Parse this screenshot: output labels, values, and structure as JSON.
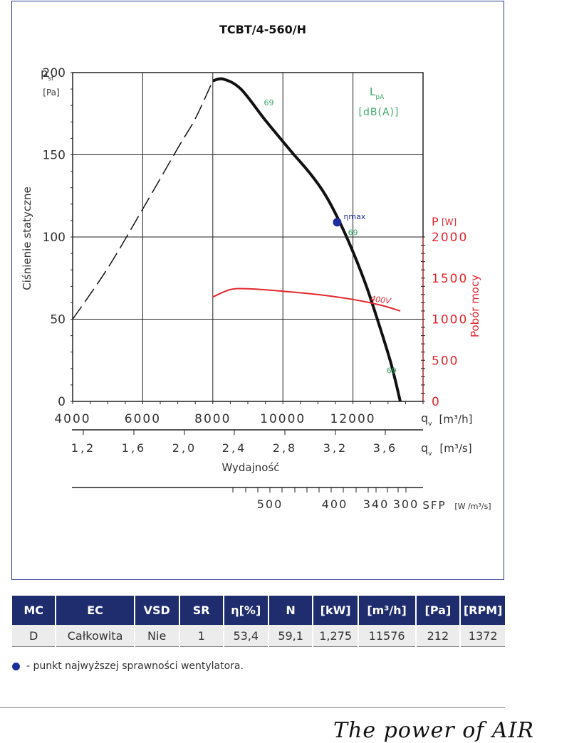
{
  "chart_data": {
    "type": "line",
    "title": "TCBT/4-560/H",
    "ylabel": "Ciśnienie statyczne",
    "y_symbol": "p",
    "y_symbol_sub": "sf",
    "y_unit": "[Pa]",
    "xlabel": "Wydajność",
    "xlim": [
      4000,
      14000
    ],
    "ylim": [
      0,
      200
    ],
    "x_ticks": [
      "4000",
      "6000",
      "8000",
      "10000",
      "12000"
    ],
    "x_unit": "[m³/h]",
    "x2_ticks": [
      "1,2",
      "1,6",
      "2,0",
      "2,4",
      "2,8",
      "3,2",
      "3,6"
    ],
    "x2_unit": "[m³/s]",
    "x_symbol": "q",
    "x_symbol_sub": "v",
    "y_ticks": [
      "0",
      "50",
      "100",
      "150",
      "200"
    ],
    "sound_label": "L",
    "sound_label_sub": "pA",
    "sound_unit": "[dB(A)]",
    "power_axis": {
      "label": "Pobór mocy",
      "symbol": "P",
      "unit": "[W]",
      "range": [
        0,
        2000
      ],
      "ticks": [
        "0",
        "500",
        "1000",
        "1500",
        "2000"
      ]
    },
    "sfp_axis": {
      "label": "SFP",
      "unit": "[W /m³/s]",
      "ticks": [
        "500",
        "400",
        "340",
        "300"
      ]
    },
    "series": [
      {
        "role": "pressure",
        "points": [
          [
            8000,
            195
          ],
          [
            8300,
            196
          ],
          [
            8800,
            190
          ],
          [
            9500,
            171
          ],
          [
            10200,
            153
          ],
          [
            10800,
            138
          ],
          [
            11200,
            126
          ],
          [
            11600,
            110
          ],
          [
            12000,
            91
          ],
          [
            12400,
            69
          ],
          [
            12800,
            43
          ],
          [
            13100,
            22
          ],
          [
            13350,
            0
          ]
        ]
      },
      {
        "role": "pressure-dashed",
        "points": [
          [
            4000,
            50
          ],
          [
            5000,
            81
          ],
          [
            6000,
            117
          ],
          [
            7000,
            154
          ],
          [
            7500,
            172
          ],
          [
            8000,
            195
          ]
        ]
      },
      {
        "name": "400V",
        "role": "power",
        "points": [
          [
            8000,
            1270
          ],
          [
            8500,
            1360
          ],
          [
            9000,
            1370
          ],
          [
            10000,
            1340
          ],
          [
            11000,
            1300
          ],
          [
            12000,
            1240
          ],
          [
            12800,
            1170
          ],
          [
            13350,
            1100
          ]
        ]
      }
    ],
    "sound_labels": [
      {
        "text": "69",
        "x": 9600,
        "y": 180
      },
      {
        "text": "69",
        "x": 12000,
        "y": 101
      },
      {
        "text": "69",
        "x": 13100,
        "y": 17
      }
    ],
    "eta_max": {
      "label": "ηmax",
      "x": 11550,
      "y": 109
    },
    "power_curve_label": "400V"
  },
  "table": {
    "headers": [
      "MC",
      "EC",
      "VSD",
      "SR",
      "η[%]",
      "N",
      "[kW]",
      "[m³/h]",
      "[Pa]",
      "[RPM]"
    ],
    "row": [
      "D",
      "Całkowita",
      "Nie",
      "1",
      "53,4",
      "59,1",
      "1,275",
      "11576",
      "212",
      "1372"
    ]
  },
  "note": "- punkt najwyższej sprawności wentylatora.",
  "tagline": "The power of AIR",
  "colors": {
    "frame": "#2b3a8c",
    "header_bg": "#1f2d6e",
    "curve": "#111111",
    "power": "#e3262d",
    "sound": "#3ea86a",
    "eta": "#1f2d9a"
  }
}
